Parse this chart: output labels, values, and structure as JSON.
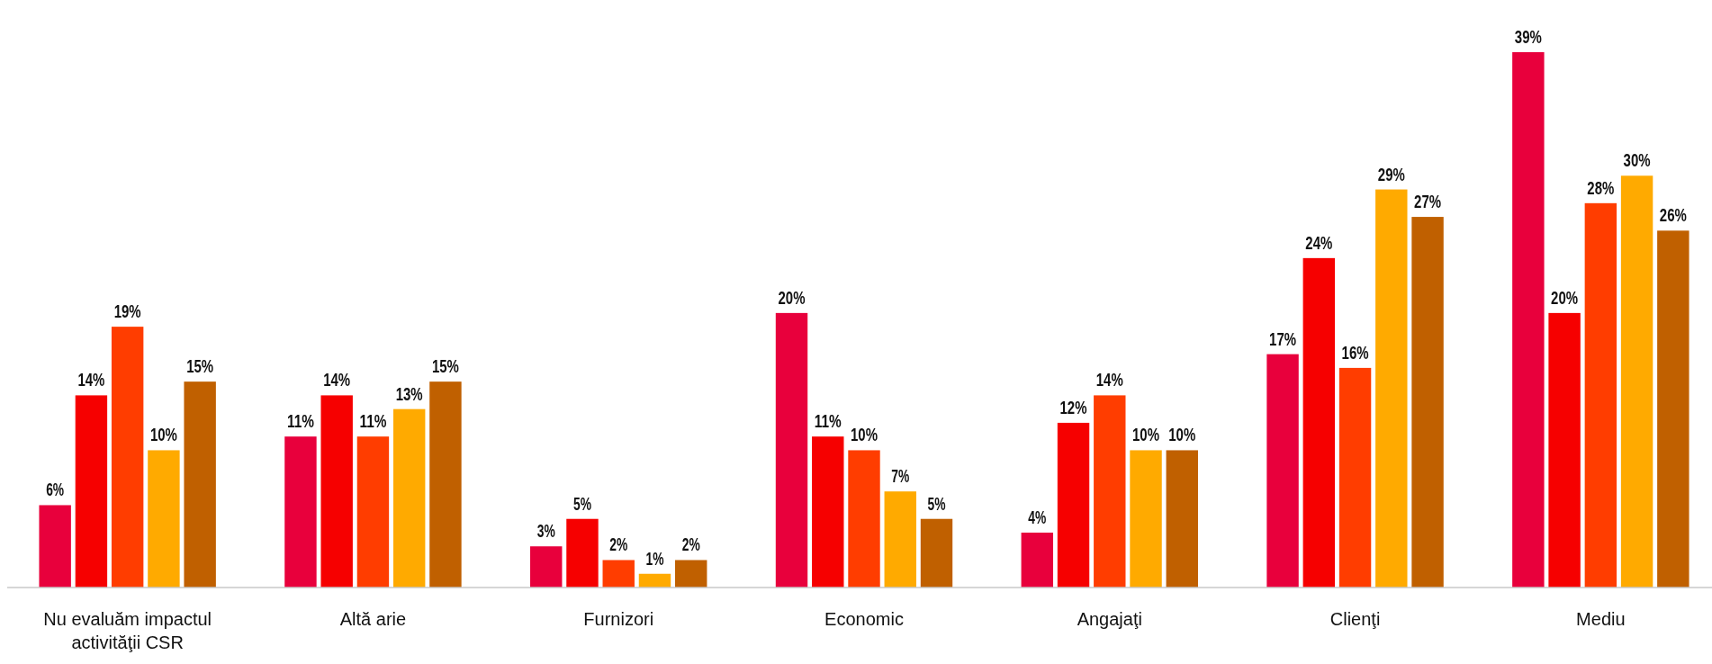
{
  "chart_data": {
    "type": "bar",
    "categories": [
      "Nu evaluăm impactul activităţii CSR",
      "Altă arie",
      "Furnizori",
      "Economic",
      "Angajaţi",
      "Clienţi",
      "Mediu"
    ],
    "series": [
      {
        "color": "#e8003c",
        "values": [
          6,
          11,
          3,
          20,
          4,
          17,
          39
        ],
        "value_labels": [
          "6%",
          "11%",
          "3%",
          "20%",
          "4%",
          "17%",
          "39%"
        ]
      },
      {
        "color": "#f60000",
        "values": [
          14,
          14,
          5,
          11,
          12,
          24,
          20
        ],
        "value_labels": [
          "14%",
          "14%",
          "5%",
          "11%",
          "12%",
          "24%",
          "20%"
        ]
      },
      {
        "color": "#ff3d00",
        "values": [
          19,
          11,
          2,
          10,
          14,
          16,
          28
        ],
        "value_labels": [
          "19%",
          "11%",
          "2%",
          "10%",
          "14%",
          "16%",
          "28%"
        ]
      },
      {
        "color": "#ffaa00",
        "values": [
          10,
          13,
          1,
          7,
          10,
          29,
          30
        ],
        "value_labels": [
          "10%",
          "13%",
          "1%",
          "7%",
          "10%",
          "29%",
          "30%"
        ]
      },
      {
        "color": "#c06000",
        "values": [
          15,
          15,
          2,
          5,
          10,
          27,
          26
        ],
        "value_labels": [
          "15%",
          "15%",
          "2%",
          "5%",
          "10%",
          "27%",
          "26%"
        ]
      }
    ]
  }
}
